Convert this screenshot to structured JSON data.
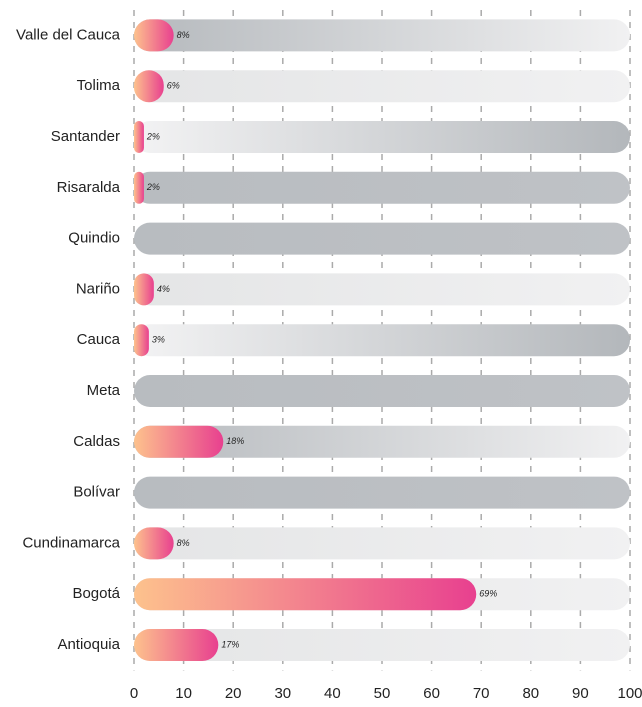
{
  "chart_data": {
    "type": "bar",
    "orientation": "horizontal",
    "categories": [
      "Valle del Cauca",
      "Tolima",
      "Santander",
      "Risaralda",
      "Quindio",
      "Nariño",
      "Cauca",
      "Meta",
      "Caldas",
      "Bolívar",
      "Cundinamarca",
      "Bogotá",
      "Antioquia"
    ],
    "values": [
      8,
      6,
      2,
      2,
      0,
      4,
      3,
      0,
      18,
      0,
      8,
      69,
      17
    ],
    "value_labels": [
      "8%",
      "6%",
      "2%",
      "2%",
      null,
      "4%",
      "3%",
      null,
      "18%",
      null,
      "8%",
      "69%",
      "17%"
    ],
    "color": [
      "#fdc28d",
      "#e8408f"
    ],
    "xlim": [
      0,
      100
    ],
    "xticks": [
      0,
      10,
      20,
      30,
      40,
      50,
      60,
      70,
      80,
      90,
      100
    ],
    "grid": true
  }
}
